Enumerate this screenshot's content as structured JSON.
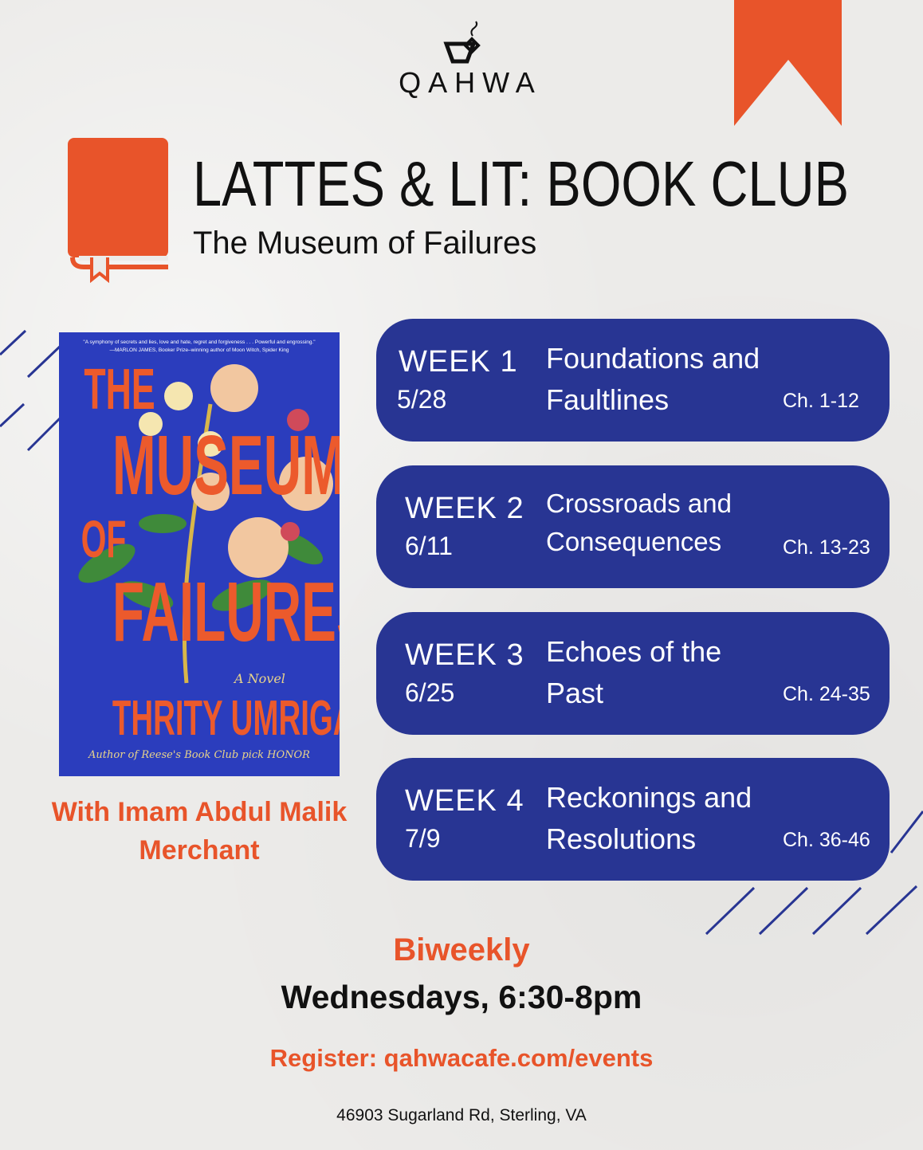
{
  "logo": {
    "name": "QAHWA",
    "icon": "coffee-cup-icon"
  },
  "header": {
    "title": "LATTES & LIT: BOOK CLUB",
    "subtitle": "The Museum of Failures"
  },
  "cover": {
    "quote": "\"A symphony of secrets and lies, love and hate, regret and forgiveness . . . Powerful and engrossing.\"",
    "quote_attribution": "—MARLON JAMES, Booker Prize–winning author of Moon Witch, Spider King",
    "title_lines": [
      "THE",
      "MUSEUM",
      "OF",
      "FAILURES"
    ],
    "novel": "A Novel",
    "author": "THRITY UMRIGAR",
    "tagline": "Author of Reese's Book Club pick HONOR"
  },
  "host": "With Imam Abdul Malik Merchant",
  "weeks": [
    {
      "label": "WEEK 1",
      "date": "5/28",
      "title": "Foundations and Faultlines",
      "chapters": "Ch. 1-12"
    },
    {
      "label": "WEEK 2",
      "date": "6/11",
      "title": "Crossroads and Consequences",
      "chapters": "Ch. 13-23"
    },
    {
      "label": "WEEK 3",
      "date": "6/25",
      "title": "Echoes of the Past",
      "chapters": "Ch. 24-35"
    },
    {
      "label": "WEEK 4",
      "date": "7/9",
      "title": "Reckonings and Resolutions",
      "chapters": "Ch. 36-46"
    }
  ],
  "schedule": {
    "frequency": "Biweekly",
    "when": "Wednesdays, 6:30-8pm"
  },
  "register": "Register: qahwacafe.com/events",
  "address": "46903 Sugarland Rd, Sterling, VA",
  "colors": {
    "accent": "#e8542a",
    "card": "#283593",
    "cover": "#2b3dbd",
    "background": "#ecebe9"
  }
}
